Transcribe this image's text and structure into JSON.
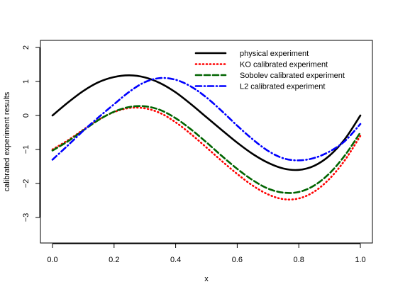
{
  "chart_data": {
    "type": "line",
    "title": "",
    "xlabel": "x",
    "ylabel": "calibrated experiment results",
    "xlim": [
      0.0,
      1.0
    ],
    "ylim": [
      -3.7,
      2.2
    ],
    "xticks": [
      0.0,
      0.2,
      0.4,
      0.6,
      0.8,
      1.0
    ],
    "xtick_labels": [
      "0.0",
      "0.2",
      "0.4",
      "0.6",
      "0.8",
      "1.0"
    ],
    "yticks": [
      -3,
      -2,
      -1,
      0,
      1,
      2
    ],
    "ytick_labels": [
      "−3",
      "−2",
      "−1",
      "0",
      "1",
      "2"
    ],
    "grid": false,
    "legend_position": "top-right",
    "x": [
      0.0,
      0.05,
      0.1,
      0.15,
      0.2,
      0.25,
      0.3,
      0.35,
      0.4,
      0.45,
      0.5,
      0.55,
      0.6,
      0.65,
      0.7,
      0.75,
      0.8,
      0.85,
      0.9,
      0.95,
      1.0
    ],
    "series": [
      {
        "name": "physical experiment",
        "color": "#000000",
        "dash": "solid",
        "values": [
          0.0,
          0.38,
          0.72,
          0.98,
          1.13,
          1.18,
          1.12,
          0.95,
          0.68,
          0.33,
          -0.05,
          -0.43,
          -0.8,
          -1.13,
          -1.39,
          -1.56,
          -1.6,
          -1.48,
          -1.18,
          -0.69,
          0.0
        ]
      },
      {
        "name": "KO calibrated experiment",
        "color": "#ff0000",
        "dash": "dotted",
        "values": [
          -1.0,
          -0.73,
          -0.42,
          -0.12,
          0.1,
          0.22,
          0.21,
          0.07,
          -0.2,
          -0.55,
          -0.94,
          -1.34,
          -1.72,
          -2.06,
          -2.32,
          -2.46,
          -2.44,
          -2.24,
          -1.86,
          -1.31,
          -0.6
        ]
      },
      {
        "name": "Sobolev calibrated experiment",
        "color": "#006400",
        "dash": "dashed",
        "values": [
          -1.03,
          -0.76,
          -0.44,
          -0.13,
          0.11,
          0.25,
          0.27,
          0.16,
          -0.08,
          -0.41,
          -0.79,
          -1.19,
          -1.57,
          -1.9,
          -2.15,
          -2.27,
          -2.25,
          -2.06,
          -1.7,
          -1.17,
          -0.5
        ]
      },
      {
        "name": "L2 calibrated experiment",
        "color": "#0000ff",
        "dash": "dashdot",
        "values": [
          -1.3,
          -0.88,
          -0.45,
          -0.05,
          0.33,
          0.7,
          0.98,
          1.1,
          1.05,
          0.85,
          0.53,
          0.13,
          -0.3,
          -0.7,
          -1.04,
          -1.26,
          -1.32,
          -1.25,
          -1.06,
          -0.75,
          -0.25
        ]
      }
    ]
  }
}
